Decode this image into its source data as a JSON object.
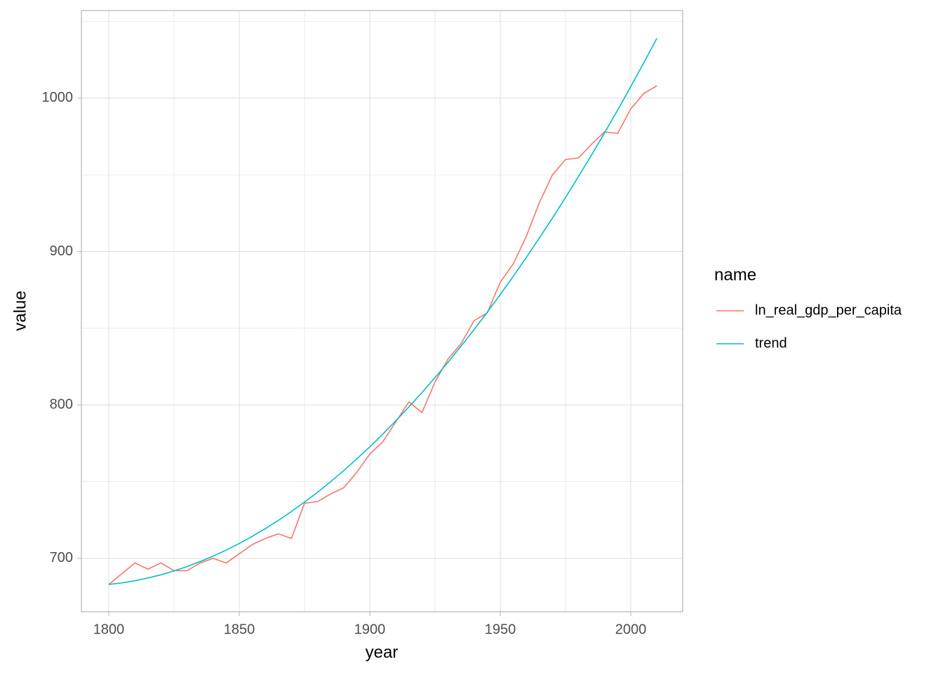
{
  "chart_data": {
    "type": "line",
    "x_label": "year",
    "y_label": "value",
    "legend_title": "name",
    "x": [
      1800,
      1805,
      1810,
      1815,
      1820,
      1825,
      1830,
      1835,
      1840,
      1845,
      1850,
      1855,
      1860,
      1865,
      1870,
      1875,
      1880,
      1885,
      1890,
      1895,
      1900,
      1905,
      1910,
      1915,
      1920,
      1925,
      1930,
      1935,
      1940,
      1945,
      1950,
      1955,
      1960,
      1965,
      1970,
      1975,
      1980,
      1985,
      1990,
      1995,
      2000,
      2005,
      2010
    ],
    "series": [
      {
        "name": "ln_real_gdp_per_capita",
        "color": "#F8766D",
        "values": [
          683,
          690,
          697,
          693,
          697,
          692,
          692,
          697,
          700,
          697,
          703,
          709,
          713,
          716,
          713,
          736,
          737,
          742,
          746,
          756,
          768,
          776,
          789,
          802,
          795,
          815,
          830,
          840,
          855,
          860,
          880,
          892,
          910,
          932,
          950,
          960,
          961,
          970,
          978,
          977,
          993,
          1003,
          1008
        ]
      },
      {
        "name": "trend",
        "color": "#00BFC4",
        "values": [
          683,
          684,
          685.4,
          687.2,
          689.3,
          691.8,
          694.7,
          697.9,
          701.5,
          705.4,
          709.7,
          714.4,
          719.4,
          724.8,
          730.6,
          736.7,
          743.1,
          750,
          757.2,
          764.8,
          772.7,
          781,
          789.7,
          798.7,
          808.1,
          817.8,
          827.9,
          838.4,
          849.2,
          860.4,
          872,
          883.9,
          896.2,
          908.9,
          921.8,
          935.2,
          949,
          963,
          977.5,
          992.3,
          1007.5,
          1023.1,
          1039
        ]
      }
    ],
    "xlim": [
      1789.5,
      2019.9
    ],
    "ylim": [
      665.2,
      1057.1
    ],
    "xticks": [
      1800,
      1850,
      1900,
      1950,
      2000
    ],
    "yticks": [
      700,
      800,
      900,
      1000
    ],
    "grid": true,
    "legend_position": "right"
  }
}
